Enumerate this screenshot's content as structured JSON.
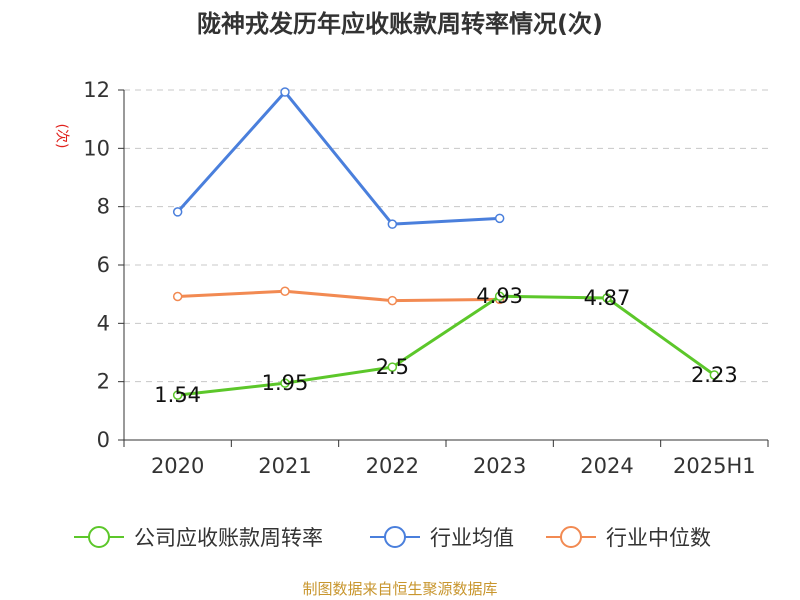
{
  "chart_data": {
    "type": "line",
    "title": "陇神戎发历年应收账款周转率情况(次)",
    "ylabel": "(次)",
    "categories": [
      "2020",
      "2021",
      "2022",
      "2023",
      "2024",
      "2025H1"
    ],
    "ylim": [
      0,
      12
    ],
    "yticks": [
      0,
      2,
      4,
      6,
      8,
      10,
      12
    ],
    "grid": true,
    "legend_position": "bottom",
    "series": [
      {
        "name": "公司应收账款周转率",
        "color": "#5cc72a",
        "values": [
          1.54,
          1.95,
          2.5,
          4.93,
          4.87,
          2.23
        ],
        "labels": [
          "1.54",
          "1.95",
          "2.5",
          "4.93",
          "4.87",
          "2.23"
        ]
      },
      {
        "name": "行业均值",
        "color": "#4a7fdc",
        "values": [
          7.82,
          11.93,
          7.4,
          7.6,
          null,
          null
        ]
      },
      {
        "name": "行业中位数",
        "color": "#f28a52",
        "values": [
          4.92,
          5.1,
          4.78,
          4.82,
          null,
          null
        ]
      }
    ]
  },
  "source": "制图数据来自恒生聚源数据库"
}
